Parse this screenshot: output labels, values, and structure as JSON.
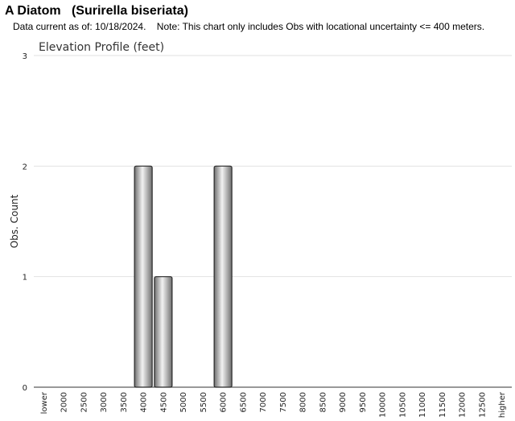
{
  "header": {
    "title": "A Diatom   (Surirella biseriata)",
    "note": "Data current as of: 10/18/2024.    Note: This chart only includes Obs with locational uncertainty <= 400 meters."
  },
  "chart_data": {
    "type": "bar",
    "title": "Elevation Profile (feet)",
    "xlabel": "",
    "ylabel": "Obs. Count",
    "ylim": [
      0,
      3
    ],
    "yticks": [
      0,
      1,
      2,
      3
    ],
    "grid": true,
    "categories": [
      "lower",
      "2000",
      "2500",
      "3000",
      "3500",
      "4000",
      "4500",
      "5000",
      "5500",
      "6000",
      "6500",
      "7000",
      "7500",
      "8000",
      "8500",
      "9000",
      "9500",
      "10000",
      "10500",
      "11000",
      "11500",
      "12000",
      "12500",
      "higher"
    ],
    "values": [
      0,
      0,
      0,
      0,
      0,
      2,
      1,
      0,
      0,
      2,
      0,
      0,
      0,
      0,
      0,
      0,
      0,
      0,
      0,
      0,
      0,
      0,
      0,
      0
    ],
    "bar_color": "#a8a8a8"
  }
}
